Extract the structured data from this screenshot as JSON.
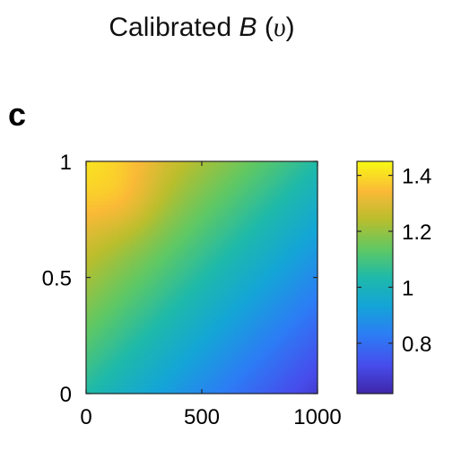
{
  "title": {
    "prefix": "Calibrated ",
    "symbol": "B",
    "open": " (",
    "arg": "υ",
    "close": ")"
  },
  "panel_label": "c",
  "chart_data": {
    "type": "heatmap",
    "x_ticks": [
      {
        "value": 0,
        "label": "0"
      },
      {
        "value": 500,
        "label": "500"
      },
      {
        "value": 1000,
        "label": "1000"
      }
    ],
    "y_ticks": [
      {
        "value": 0,
        "label": "0"
      },
      {
        "value": 0.5,
        "label": "0.5"
      },
      {
        "value": 1,
        "label": "1"
      }
    ],
    "xlim": [
      0,
      1000
    ],
    "ylim": [
      0,
      1
    ],
    "colorbar": {
      "range": [
        0.62,
        1.45
      ],
      "ticks": [
        {
          "value": 0.8,
          "label": "0.8"
        },
        {
          "value": 1,
          "label": "1"
        },
        {
          "value": 1.2,
          "label": "1.2"
        },
        {
          "value": 1.4,
          "label": "1.4"
        }
      ],
      "colormap": "parula"
    },
    "field": {
      "description_values": "value = 1.04 + 0.36*(y - x/1000), with a warm peak near x=150, y=0.85",
      "corners": {
        "x0_y0": 1.02,
        "x1000_y0": 0.63,
        "x0_y1": 1.42,
        "x1000_y1": 1.05
      },
      "grid_x": [
        0,
        100,
        200,
        300,
        400,
        500,
        600,
        700,
        800,
        900,
        1000
      ],
      "grid_y": [
        0,
        0.1,
        0.2,
        0.3,
        0.4,
        0.5,
        0.6,
        0.7,
        0.8,
        0.9,
        1.0
      ]
    },
    "grid": false,
    "legend": "colorbar-right"
  }
}
